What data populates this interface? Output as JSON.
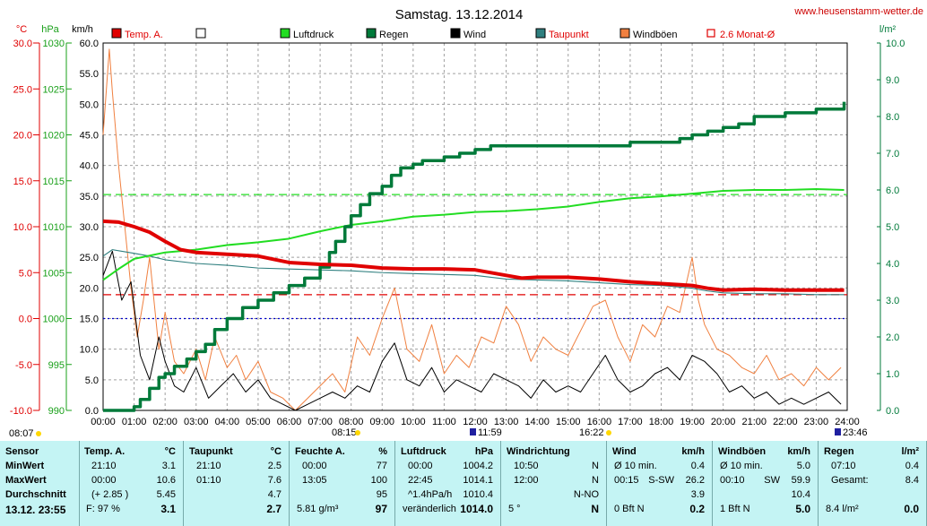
{
  "title": "Samstag. 13.12.2014",
  "site": "www.heusenstamm-wetter.de",
  "axis_units": {
    "temp": "°C",
    "press": "hPa",
    "wind": "km/h",
    "rain": "l/m²"
  },
  "legend": [
    {
      "label": "Temp. A.",
      "color": "#e00000",
      "type": "box"
    },
    {
      "label": "",
      "color": "#ffffff",
      "type": "box"
    },
    {
      "label": "Luftdruck",
      "color": "#22dd22",
      "type": "box"
    },
    {
      "label": "Regen",
      "color": "#007a3a",
      "type": "box"
    },
    {
      "label": "Wind",
      "color": "#000000",
      "type": "box"
    },
    {
      "label": "Taupunkt",
      "color": "#2f7f7f",
      "type": "box"
    },
    {
      "label": "Windböen",
      "color": "#f08040",
      "type": "box"
    },
    {
      "label": "2.6 Monat-Ø",
      "color": "#e00000",
      "type": "outline"
    }
  ],
  "markers": {
    "sunrise": "08:07",
    "sunset": "16:22",
    "morning": "08:15",
    "noon": "11:59",
    "end": "23:46"
  },
  "chart_data": {
    "type": "line",
    "title": "Samstag. 13.12.2014",
    "x_ticks": [
      "00:00",
      "01:00",
      "02:00",
      "03:00",
      "04:00",
      "05:00",
      "06:00",
      "07:00",
      "08:00",
      "09:00",
      "10:00",
      "11:00",
      "12:00",
      "13:00",
      "14:00",
      "15:00",
      "16:00",
      "17:00",
      "18:00",
      "19:00",
      "20:00",
      "21:00",
      "22:00",
      "23:00",
      "24:00"
    ],
    "x_range": [
      0,
      24
    ],
    "axes": {
      "temp": {
        "label": "°C",
        "range": [
          -10,
          30
        ],
        "ticks": [
          "30.0",
          "25.0",
          "20.0",
          "15.0",
          "10.0",
          "5.0",
          "0.0",
          "-5.0",
          "-10.0"
        ]
      },
      "pressure": {
        "label": "hPa",
        "range": [
          990,
          1030
        ],
        "ticks": [
          "1030",
          "1025",
          "1020",
          "1015",
          "1010",
          "1005",
          "1000",
          "995",
          "990"
        ]
      },
      "wind": {
        "label": "km/h",
        "range": [
          0,
          60
        ],
        "ticks": [
          "60.0",
          "55.0",
          "50.0",
          "45.0",
          "40.0",
          "35.0",
          "30.0",
          "25.0",
          "20.0",
          "15.0",
          "10.0",
          "5.0",
          "0.0"
        ]
      },
      "rain": {
        "label": "l/m²",
        "range": [
          0,
          10
        ],
        "ticks": [
          "10.0",
          "9.0",
          "8.0",
          "7.0",
          "6.0",
          "5.0",
          "4.0",
          "3.0",
          "2.0",
          "1.0",
          "0.0"
        ]
      }
    },
    "reference_lines": [
      {
        "name": "Luftdruck Monat-Ø",
        "axis": "pressure",
        "value": 1013.5,
        "color": "#22dd22"
      },
      {
        "name": "Temp. Monat-Ø",
        "axis": "temp",
        "value": 2.6,
        "color": "#e00000"
      },
      {
        "name": "0 °C",
        "axis": "temp",
        "value": 0,
        "color": "#0000cc"
      }
    ],
    "series": [
      {
        "name": "Temp. A.",
        "axis": "temp",
        "color": "#e00000",
        "x": [
          0,
          0.5,
          1,
          1.5,
          2,
          2.5,
          3,
          4,
          5,
          6,
          7,
          8,
          9,
          10,
          11,
          12,
          13,
          13.5,
          14,
          15,
          16,
          17,
          18,
          19,
          19.5,
          20,
          21,
          22,
          23,
          23.9
        ],
        "y": [
          10.6,
          10.5,
          10.0,
          9.4,
          8.4,
          7.5,
          7.2,
          7.0,
          6.8,
          6.1,
          5.9,
          5.8,
          5.5,
          5.4,
          5.4,
          5.3,
          4.7,
          4.4,
          4.5,
          4.5,
          4.3,
          4.0,
          3.8,
          3.6,
          3.3,
          3.1,
          3.2,
          3.1,
          3.1,
          3.1
        ]
      },
      {
        "name": "Taupunkt",
        "axis": "temp",
        "color": "#2f7f7f",
        "x": [
          0,
          0.3,
          1,
          1.5,
          2,
          3,
          4,
          5,
          6,
          7,
          8,
          9,
          10,
          11,
          12,
          13,
          14,
          15,
          16,
          17,
          18,
          19,
          19.5,
          20,
          21,
          22,
          23,
          23.9
        ],
        "y": [
          6.8,
          7.5,
          7.1,
          6.8,
          6.4,
          6.0,
          5.8,
          5.5,
          5.4,
          5.3,
          5.2,
          5.0,
          4.9,
          4.8,
          4.7,
          4.3,
          4.2,
          4.1,
          3.9,
          3.7,
          3.6,
          3.3,
          3.0,
          2.8,
          2.7,
          2.7,
          2.6,
          2.6
        ]
      },
      {
        "name": "Luftdruck",
        "axis": "pressure",
        "color": "#22dd22",
        "x": [
          0,
          0.5,
          1,
          2,
          3,
          4,
          5,
          6,
          7,
          8,
          9,
          10,
          11,
          12,
          13,
          14,
          15,
          16,
          17,
          18,
          19,
          20,
          21,
          22,
          23,
          23.9
        ],
        "y": [
          1004.2,
          1005.4,
          1006.5,
          1007.2,
          1007.5,
          1008.0,
          1008.3,
          1008.7,
          1009.5,
          1010.2,
          1010.6,
          1011.1,
          1011.3,
          1011.6,
          1011.7,
          1011.9,
          1012.2,
          1012.7,
          1013.1,
          1013.3,
          1013.6,
          1013.9,
          1014.0,
          1014.0,
          1014.1,
          1014.0
        ]
      },
      {
        "name": "Regen",
        "axis": "rain",
        "color": "#007a3a",
        "x": [
          0,
          0.8,
          1,
          1.2,
          1.5,
          1.8,
          2,
          2.3,
          2.7,
          3,
          3.3,
          3.6,
          4,
          4.5,
          5,
          5.5,
          6,
          6.5,
          7,
          7.3,
          7.5,
          7.8,
          8,
          8.3,
          8.6,
          9,
          9.3,
          9.6,
          10,
          10.3,
          10.6,
          11,
          11.5,
          12,
          12.5,
          13,
          14,
          15,
          16,
          17,
          18,
          18.6,
          19,
          19.5,
          20,
          20.5,
          21,
          22,
          23,
          23.9
        ],
        "y": [
          0,
          0,
          0.1,
          0.3,
          0.6,
          0.9,
          1.0,
          1.2,
          1.4,
          1.6,
          1.8,
          2.2,
          2.5,
          2.8,
          3.0,
          3.2,
          3.4,
          3.6,
          3.9,
          4.3,
          4.6,
          5.0,
          5.3,
          5.6,
          5.9,
          6.1,
          6.4,
          6.6,
          6.7,
          6.8,
          6.8,
          6.9,
          7.0,
          7.1,
          7.2,
          7.2,
          7.2,
          7.2,
          7.2,
          7.3,
          7.3,
          7.4,
          7.5,
          7.6,
          7.7,
          7.8,
          8.0,
          8.1,
          8.2,
          8.4
        ]
      },
      {
        "name": "Wind",
        "axis": "wind",
        "color": "#000000",
        "x": [
          0,
          0.3,
          0.6,
          0.9,
          1.2,
          1.5,
          1.8,
          2,
          2.3,
          2.6,
          3,
          3.4,
          3.8,
          4.2,
          4.6,
          5,
          5.4,
          5.8,
          6.2,
          6.6,
          7,
          7.4,
          7.8,
          8.2,
          8.6,
          9,
          9.4,
          9.8,
          10.2,
          10.6,
          11,
          11.4,
          11.8,
          12.2,
          12.6,
          13,
          13.4,
          13.8,
          14.2,
          14.6,
          15,
          15.4,
          15.8,
          16.2,
          16.6,
          17,
          17.4,
          17.8,
          18.2,
          18.6,
          19,
          19.4,
          19.8,
          20.2,
          20.6,
          21,
          21.4,
          21.8,
          22.2,
          22.6,
          23,
          23.4,
          23.8
        ],
        "y": [
          22,
          26,
          18,
          21,
          9,
          5,
          12,
          8,
          4,
          3,
          7,
          2,
          4,
          6,
          3,
          5,
          2,
          1,
          0,
          1,
          2,
          3,
          2,
          4,
          3,
          8,
          11,
          5,
          4,
          7,
          3,
          5,
          4,
          3,
          6,
          5,
          4,
          2,
          5,
          3,
          4,
          3,
          6,
          9,
          5,
          3,
          4,
          6,
          7,
          5,
          9,
          8,
          6,
          3,
          4,
          2,
          3,
          1,
          2,
          1,
          2,
          3,
          1
        ]
      },
      {
        "name": "Windböen",
        "axis": "wind",
        "color": "#f08040",
        "x": [
          0,
          0.2,
          0.3,
          0.5,
          0.7,
          0.9,
          1.1,
          1.3,
          1.5,
          1.8,
          2,
          2.3,
          2.6,
          3,
          3.3,
          3.6,
          4,
          4.3,
          4.6,
          5,
          5.4,
          5.8,
          6.2,
          6.6,
          7,
          7.4,
          7.8,
          8.2,
          8.6,
          9,
          9.4,
          9.8,
          10.2,
          10.6,
          11,
          11.4,
          11.8,
          12.2,
          12.6,
          13,
          13.4,
          13.8,
          14.2,
          14.6,
          15,
          15.4,
          15.8,
          16.2,
          16.6,
          17,
          17.4,
          17.8,
          18.2,
          18.6,
          19,
          19.2,
          19.4,
          19.8,
          20.2,
          20.6,
          21,
          21.4,
          21.8,
          22.2,
          22.6,
          23,
          23.4,
          23.8
        ],
        "y": [
          45,
          59,
          52,
          40,
          30,
          20,
          12,
          18,
          25,
          10,
          16,
          8,
          6,
          10,
          5,
          12,
          7,
          9,
          5,
          8,
          3,
          2,
          0,
          2,
          4,
          6,
          3,
          12,
          9,
          15,
          20,
          10,
          8,
          14,
          6,
          9,
          7,
          12,
          11,
          17,
          14,
          8,
          12,
          10,
          9,
          13,
          17,
          18,
          12,
          8,
          14,
          12,
          17,
          16,
          25,
          18,
          14,
          10,
          9,
          7,
          6,
          9,
          5,
          6,
          4,
          7,
          5,
          7
        ]
      }
    ]
  },
  "stats": {
    "sensor": {
      "title": "Sensor",
      "rows": [
        "MinWert",
        "MaxWert",
        "Durchschnitt"
      ],
      "footer": "13.12. 23:55"
    },
    "temp": {
      "title": "Temp. A.",
      "unit": "°C",
      "rows": [
        [
          "21:10",
          "3.1"
        ],
        [
          "00:00",
          "10.6"
        ],
        [
          "(+ 2.85 )",
          "5.45"
        ]
      ],
      "footer_label": "F: 97 %",
      "footer_value": "3.1"
    },
    "dew": {
      "title": "Taupunkt",
      "unit": "°C",
      "rows": [
        [
          "21:10",
          "2.5"
        ],
        [
          "01:10",
          "7.6"
        ],
        [
          "",
          "4.7"
        ]
      ],
      "footer_label": "",
      "footer_value": "2.7"
    },
    "humidity": {
      "title": "Feuchte A.",
      "unit": "%",
      "rows": [
        [
          "00:00",
          "77"
        ],
        [
          "13:05",
          "100"
        ],
        [
          "",
          "95"
        ]
      ],
      "footer_label": "5.81 g/m³",
      "footer_value": "97"
    },
    "pressure": {
      "title": "Luftdruck",
      "unit": "hPa",
      "rows": [
        [
          "00:00",
          "1004.2"
        ],
        [
          "22:45",
          "1014.1"
        ],
        [
          "^1.4hPa/h",
          "1010.4"
        ]
      ],
      "footer_label": "veränderlich",
      "footer_value": "1014.0"
    },
    "winddir": {
      "title": "Windrichtung",
      "unit": "",
      "rows": [
        [
          "10:50",
          "N"
        ],
        [
          "12:00",
          "N"
        ],
        [
          "",
          "N-NO"
        ]
      ],
      "footer_label": "5 °",
      "footer_value": "N"
    },
    "wind": {
      "title": "Wind",
      "unit": "km/h",
      "rows": [
        [
          "Ø 10 min.",
          "",
          "0.4"
        ],
        [
          "00:15",
          "S-SW",
          "26.2"
        ],
        [
          "",
          "",
          "3.9"
        ]
      ],
      "footer_label": "0 Bft N",
      "footer_value": "0.2"
    },
    "gust": {
      "title": "Windböen",
      "unit": "km/h",
      "rows": [
        [
          "Ø 10 min.",
          "",
          "5.0"
        ],
        [
          "00:10",
          "SW",
          "59.9"
        ],
        [
          "",
          "",
          "10.4"
        ]
      ],
      "footer_label": "1 Bft N",
      "footer_value": "5.0"
    },
    "rain": {
      "title": "Regen",
      "unit": "l/m²",
      "rows": [
        [
          "07:10",
          "0.4"
        ],
        [
          "Gesamt:",
          "8.4"
        ]
      ],
      "footer_label": "8.4 l/m²",
      "footer_value": "0.0"
    }
  }
}
